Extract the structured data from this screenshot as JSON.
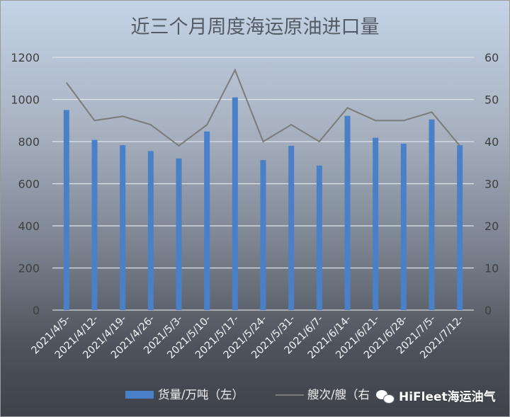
{
  "chart_data": {
    "type": "bar+line",
    "title": "近三个月周度海运原油进口量",
    "categories": [
      "2021/4/5-",
      "2021/4/12-",
      "2021/4/19-",
      "2021/4/26-",
      "2021/5/3-",
      "2021/5/10-",
      "2021/5/17-",
      "2021/5/24-",
      "2021/5/31-",
      "2021/6/7-",
      "2021/6/14-",
      "2021/6/21-",
      "2021/6/28-",
      "2021/7/5-",
      "2021/7/12-"
    ],
    "series": [
      {
        "name": "货量/万吨（左）",
        "type": "bar",
        "axis": "left",
        "color": "#4a80c8",
        "values": [
          950,
          808,
          783,
          755,
          720,
          848,
          1010,
          712,
          780,
          686,
          922,
          818,
          790,
          905,
          783
        ]
      },
      {
        "name": "艘次/艘（右",
        "type": "line",
        "axis": "right",
        "color": "#7b7b7b",
        "values": [
          54,
          45,
          46,
          44,
          39,
          44,
          57,
          40,
          44,
          40,
          48,
          45,
          45,
          47,
          39
        ]
      }
    ],
    "y_left": {
      "min": 0,
      "max": 1200,
      "ticks": [
        0,
        200,
        400,
        600,
        800,
        1000,
        1200
      ]
    },
    "y_right": {
      "min": 0,
      "max": 60,
      "ticks": [
        0,
        10,
        20,
        30,
        40,
        50,
        60
      ]
    },
    "grid": true,
    "legend": "bottom"
  },
  "watermark": {
    "text": "HiFleet海运油气",
    "icon": "wechat-icon"
  }
}
